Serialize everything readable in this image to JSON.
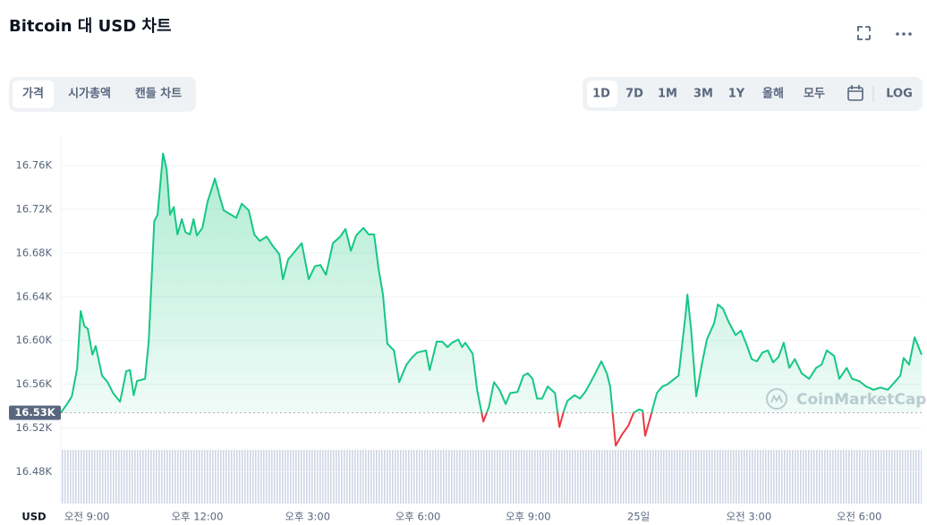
{
  "header": {
    "title": "Bitcoin 대 USD 차트"
  },
  "tabs": [
    "가격",
    "시가총액",
    "캔들 차트"
  ],
  "ranges": [
    "1D",
    "7D",
    "1M",
    "3M",
    "1Y",
    "올해",
    "모두"
  ],
  "log_label": "LOG",
  "chart_data": {
    "type": "line",
    "axis_unit": "USD",
    "watermark": "CoinMarketCap",
    "x": [
      8.29,
      8.46,
      8.59,
      8.73,
      8.83,
      8.93,
      9.02,
      9.15,
      9.24,
      9.41,
      9.56,
      9.71,
      9.9,
      10.07,
      10.17,
      10.27,
      10.36,
      10.58,
      10.68,
      10.83,
      10.92,
      11.07,
      11.17,
      11.26,
      11.36,
      11.46,
      11.58,
      11.68,
      11.8,
      11.9,
      11.99,
      12.14,
      12.28,
      12.48,
      12.6,
      12.72,
      12.92,
      13.06,
      13.21,
      13.4,
      13.55,
      13.7,
      13.89,
      14.04,
      14.23,
      14.33,
      14.47,
      14.67,
      14.84,
      15.03,
      15.2,
      15.35,
      15.5,
      15.69,
      15.89,
      16.03,
      16.18,
      16.32,
      16.52,
      16.66,
      16.81,
      16.93,
      17.05,
      17.17,
      17.35,
      17.49,
      17.69,
      17.83,
      17.98,
      18.22,
      18.32,
      18.51,
      18.66,
      18.81,
      18.93,
      19.1,
      19.2,
      19.29,
      19.49,
      19.61,
      19.78,
      19.93,
      20.07,
      20.22,
      20.39,
      20.51,
      20.71,
      20.87,
      20.99,
      21.12,
      21.24,
      21.38,
      21.53,
      21.73,
      21.85,
      21.97,
      22.07,
      22.26,
      22.41,
      22.55,
      22.7,
      22.87,
      22.99,
      23.14,
      23.23,
      23.38,
      23.55,
      23.72,
      23.87,
      24.01,
      24.11,
      24.18,
      24.3,
      24.5,
      24.65,
      24.79,
      24.94,
      25.09,
      25.28,
      25.33,
      25.43,
      25.57,
      25.72,
      25.86,
      26.06,
      26.16,
      26.3,
      26.45,
      26.64,
      26.79,
      26.93,
      27.08,
      27.22,
      27.37,
      27.52,
      27.66,
      27.81,
      27.95,
      28.1,
      28.25,
      28.44,
      28.64,
      28.83,
      28.98,
      29.12,
      29.32,
      29.46,
      29.66,
      29.81,
      30.0,
      30.19,
      30.39,
      30.58,
      30.78,
      30.97,
      31.12,
      31.21,
      31.36,
      31.51,
      31.7
    ],
    "values": [
      16534,
      16542,
      16549,
      16574,
      16627,
      16613,
      16611,
      16587,
      16595,
      16568,
      16562,
      16552,
      16544,
      16572,
      16573,
      16550,
      16563,
      16565,
      16599,
      16709,
      16715,
      16771,
      16756,
      16715,
      16722,
      16697,
      16711,
      16699,
      16697,
      16711,
      16696,
      16703,
      16727,
      16748,
      16733,
      16719,
      16715,
      16712,
      16725,
      16719,
      16697,
      16691,
      16695,
      16687,
      16679,
      16656,
      16674,
      16682,
      16689,
      16656,
      16668,
      16669,
      16660,
      16689,
      16695,
      16702,
      16682,
      16696,
      16703,
      16697,
      16697,
      16666,
      16642,
      16597,
      16591,
      16562,
      16578,
      16584,
      16589,
      16591,
      16573,
      16599,
      16599,
      16594,
      16598,
      16601,
      16594,
      16598,
      16588,
      16555,
      16526,
      16539,
      16562,
      16555,
      16542,
      16552,
      16553,
      16568,
      16570,
      16565,
      16547,
      16547,
      16558,
      16552,
      16521,
      16536,
      16545,
      16550,
      16547,
      16553,
      16562,
      16573,
      16581,
      16570,
      16558,
      16504,
      16514,
      16522,
      16534,
      16537,
      16536,
      16513,
      16527,
      16552,
      16558,
      16560,
      16564,
      16568,
      16624,
      16642,
      16611,
      16549,
      16578,
      16601,
      16616,
      16633,
      16629,
      16617,
      16605,
      16609,
      16597,
      16583,
      16581,
      16589,
      16591,
      16580,
      16585,
      16598,
      16575,
      16583,
      16570,
      16565,
      16575,
      16578,
      16591,
      16586,
      16565,
      16575,
      16565,
      16563,
      16558,
      16555,
      16557,
      16555,
      16562,
      16568,
      16584,
      16578,
      16603,
      16587
    ],
    "up_color": "#16c784",
    "down_color": "#ea3943",
    "reference": {
      "value": 16534,
      "label": "16.53K"
    },
    "xlim": [
      8.29,
      31.7
    ],
    "ylim": [
      16451,
      16787
    ],
    "xticks": [
      {
        "value": 9,
        "label": "오전 9:00"
      },
      {
        "value": 12,
        "label": "오후 12:00"
      },
      {
        "value": 15,
        "label": "오후 3:00"
      },
      {
        "value": 18,
        "label": "오후 6:00"
      },
      {
        "value": 21,
        "label": "오후 9:00"
      },
      {
        "value": 24,
        "label": "25일"
      },
      {
        "value": 27,
        "label": "오전 3:00"
      },
      {
        "value": 30,
        "label": "오전 6:00"
      }
    ],
    "yticks": [
      {
        "value": 16480,
        "label": "16.48K"
      },
      {
        "value": 16520,
        "label": "16.52K"
      },
      {
        "value": 16560,
        "label": "16.56K"
      },
      {
        "value": 16600,
        "label": "16.60K"
      },
      {
        "value": 16640,
        "label": "16.64K"
      },
      {
        "value": 16680,
        "label": "16.68K"
      },
      {
        "value": 16720,
        "label": "16.72K"
      },
      {
        "value": 16760,
        "label": "16.76K"
      }
    ],
    "grid": true
  }
}
